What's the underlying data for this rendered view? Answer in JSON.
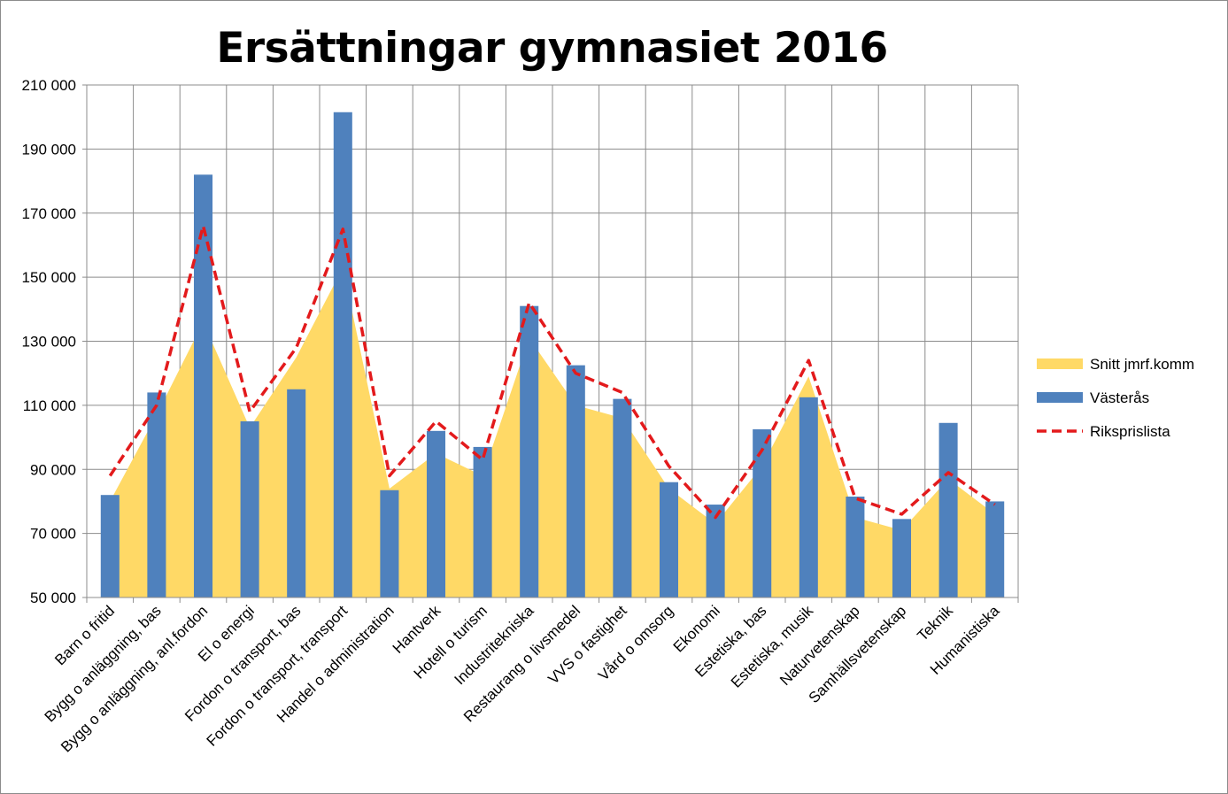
{
  "chart_data": {
    "type": "bar",
    "title": "Ersättningar gymnasiet 2016",
    "xlabel": "",
    "ylabel": "",
    "ylim": [
      50000,
      210000
    ],
    "yticks": [
      50000,
      70000,
      90000,
      110000,
      130000,
      150000,
      170000,
      190000,
      210000
    ],
    "ytick_labels": [
      "50 000",
      "70 000",
      "90 000",
      "110 000",
      "130 000",
      "150 000",
      "170 000",
      "190 000",
      "210 000"
    ],
    "grid": true,
    "legend_position": "right",
    "categories": [
      "Barn o fritid",
      "Bygg o anläggning, bas",
      "Bygg o anläggning, anl.fordon",
      "El o energi",
      "Fordon o transport, bas",
      "Fordon o transport, transport",
      "Handel o administration",
      "Hantverk",
      "Hotell o turism",
      "Industritekniska",
      "Restaurang o livsmedel",
      "VVS o fastighet",
      "Vård o omsorg",
      "Ekonomi",
      "Estetiska, bas",
      "Estetiska, musik",
      "Naturvetenskap",
      "Samhällsvetenskap",
      "Teknik",
      "Humanistiska"
    ],
    "series": [
      {
        "name": "Snitt jmrf.komm",
        "type": "area",
        "color": "#FFD966",
        "values": [
          80000,
          107000,
          136000,
          103000,
          125000,
          153000,
          84000,
          95000,
          88000,
          131000,
          110000,
          106000,
          84000,
          73000,
          91000,
          119000,
          75000,
          71000,
          87000,
          76000
        ]
      },
      {
        "name": "Västerås",
        "type": "bar",
        "color": "#4F81BD",
        "values": [
          82000,
          114000,
          182000,
          105000,
          115000,
          201500,
          83500,
          102000,
          97000,
          141000,
          122500,
          112000,
          86000,
          79000,
          102500,
          112500,
          81500,
          74500,
          104500,
          80000
        ]
      },
      {
        "name": "Riksprislista",
        "type": "line",
        "style": "dashed",
        "color": "#E31A1C",
        "values": [
          88000,
          110000,
          166000,
          108000,
          128000,
          165000,
          88000,
          105000,
          93000,
          142000,
          120000,
          114000,
          91000,
          75000,
          96000,
          124000,
          81000,
          76000,
          89000,
          79000
        ]
      }
    ]
  }
}
